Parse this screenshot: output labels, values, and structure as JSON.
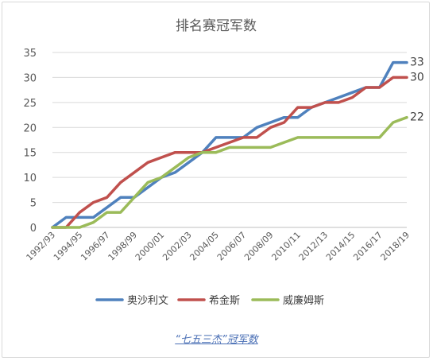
{
  "chart_data": {
    "type": "line",
    "title": "排名赛冠军数",
    "xlabel": "",
    "ylabel": "",
    "ylim": [
      0,
      35
    ],
    "yticks": [
      0,
      5,
      10,
      15,
      20,
      25,
      30,
      35
    ],
    "grid": true,
    "legend_position": "bottom",
    "x": [
      "1992/93",
      "1993/94",
      "1994/95",
      "1995/96",
      "1996/97",
      "1997/98",
      "1998/99",
      "1999/00",
      "2000/01",
      "2001/02",
      "2002/03",
      "2003/04",
      "2004/05",
      "2005/06",
      "2006/07",
      "2007/08",
      "2008/09",
      "2009/10",
      "2010/11",
      "2011/12",
      "2012/13",
      "2013/14",
      "2014/15",
      "2015/16",
      "2016/17",
      "2017/18",
      "2018/19"
    ],
    "x_tick_labels": [
      "1992/93",
      "1994/95",
      "1996/97",
      "1998/99",
      "2000/01",
      "2002/03",
      "2004/05",
      "2006/07",
      "2008/09",
      "2010/11",
      "2012/13",
      "2014/15",
      "2016/17",
      "2018/19"
    ],
    "series": [
      {
        "name": "奥沙利文",
        "color": "#4f81bd",
        "end_label": "33",
        "values": [
          0,
          2,
          2,
          2,
          4,
          6,
          6,
          8,
          10,
          11,
          13,
          15,
          18,
          18,
          18,
          20,
          21,
          22,
          22,
          24,
          25,
          26,
          27,
          28,
          28,
          33,
          33
        ]
      },
      {
        "name": "希金斯",
        "color": "#c0504d",
        "end_label": "30",
        "values": [
          0,
          0,
          3,
          5,
          6,
          9,
          11,
          13,
          14,
          15,
          15,
          15,
          16,
          17,
          18,
          18,
          20,
          21,
          24,
          24,
          25,
          25,
          26,
          28,
          28,
          30,
          30
        ]
      },
      {
        "name": "威廉姆斯",
        "color": "#9bbb59",
        "end_label": "22",
        "values": [
          0,
          0,
          0,
          1,
          3,
          3,
          6,
          9,
          10,
          12,
          14,
          15,
          15,
          16,
          16,
          16,
          16,
          17,
          18,
          18,
          18,
          18,
          18,
          18,
          18,
          21,
          22
        ]
      }
    ]
  },
  "caption": "“七五三杰”冠军数"
}
